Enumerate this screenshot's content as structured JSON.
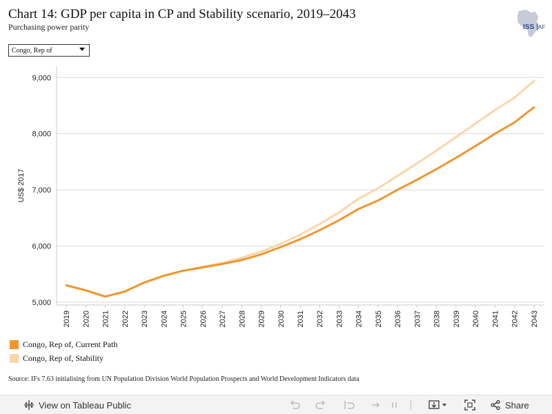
{
  "title": "Chart 14: GDP per capita in CP and Stability scenario, 2019–2043",
  "subtitle": "Purchasing power parity",
  "logo_text": "ISS|AF",
  "filter": {
    "selected": "Congo, Rep of"
  },
  "source": "Source: IFs 7.63 initialising from UN Population Division World Population Prospects and World Development Indicators data",
  "toolbar": {
    "view_label": "View on Tableau Public",
    "share_label": "Share"
  },
  "colors": {
    "current_path": "#f0962e",
    "stability": "#fad6aa",
    "grid": "#d9d9d9"
  },
  "chart_data": {
    "type": "line",
    "title": "Chart 14: GDP per capita in CP and Stability scenario, 2019–2043",
    "subtitle": "Purchasing power parity",
    "xlabel": "",
    "ylabel": "US$ 2017",
    "ylim": [
      4950,
      9200
    ],
    "yticks": [
      5000,
      6000,
      7000,
      8000,
      9000
    ],
    "ytick_labels": [
      "5,000",
      "6,000",
      "7,000",
      "8,000",
      "9,000"
    ],
    "grid": true,
    "legend_position": "bottom-left",
    "x": [
      "2019",
      "2020",
      "2021",
      "2022",
      "2023",
      "2024",
      "2025",
      "2026",
      "2027",
      "2028",
      "2029",
      "2030",
      "2031",
      "2032",
      "2033",
      "2034",
      "2035",
      "2036",
      "2037",
      "2038",
      "2039",
      "2040",
      "2041",
      "2042",
      "2043"
    ],
    "series": [
      {
        "name": "Congo, Rep of, Current Path",
        "color": "#f0962e",
        "values": [
          5300,
          5210,
          5100,
          5190,
          5350,
          5470,
          5560,
          5620,
          5680,
          5750,
          5850,
          5980,
          6120,
          6280,
          6460,
          6660,
          6810,
          7000,
          7180,
          7370,
          7570,
          7780,
          8000,
          8200,
          8470
        ]
      },
      {
        "name": "Congo, Rep of, Stability",
        "color": "#fad6aa",
        "values": [
          5300,
          5210,
          5100,
          5190,
          5350,
          5470,
          5560,
          5630,
          5700,
          5790,
          5900,
          6040,
          6200,
          6390,
          6600,
          6840,
          7030,
          7250,
          7470,
          7700,
          7940,
          8180,
          8420,
          8640,
          8940
        ]
      }
    ]
  }
}
